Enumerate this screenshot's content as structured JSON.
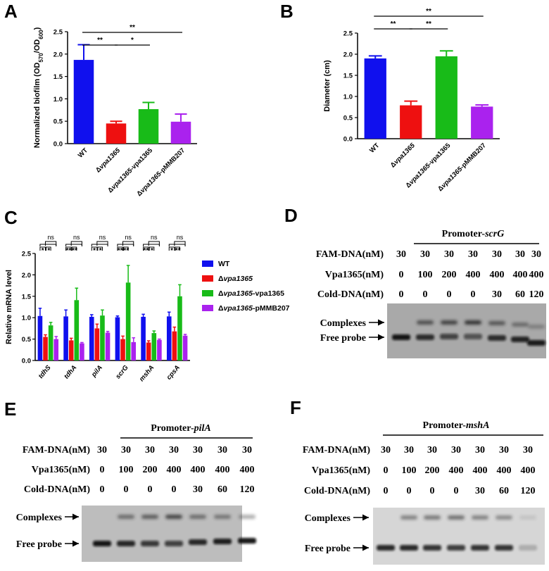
{
  "panels": {
    "A": "A",
    "B": "B",
    "C": "C",
    "D": "D",
    "E": "E",
    "F": "F"
  },
  "colors": {
    "wt": "#1010ee",
    "mutant": "#ee1010",
    "complement": "#18bb18",
    "vector": "#aa22ee"
  },
  "chart_data": [
    {
      "panel": "A",
      "type": "bar",
      "ylabel": "Normalized biofilm (OD570/OD600)",
      "ylim": [
        0,
        2.5
      ],
      "yticks": [
        "0.0",
        "0.5",
        "1.0",
        "1.5",
        "2.0",
        "2.5"
      ],
      "categories": [
        "WT",
        "Δvpa1365",
        "Δvpa1365-vpa1365",
        "Δvpa1365-pMMB207"
      ],
      "values": [
        1.87,
        0.45,
        0.77,
        0.49
      ],
      "errors": [
        0.34,
        0.05,
        0.15,
        0.17
      ],
      "significance": [
        {
          "from": 0,
          "to": 1,
          "label": "**"
        },
        {
          "from": 1,
          "to": 2,
          "label": "*"
        },
        {
          "from": 0,
          "to": 3,
          "label": "**"
        }
      ]
    },
    {
      "panel": "B",
      "type": "bar",
      "ylabel": "Diameter (cm)",
      "ylim": [
        0,
        2.5
      ],
      "yticks": [
        "0.0",
        "0.5",
        "1.0",
        "1.5",
        "2.0",
        "2.5"
      ],
      "categories": [
        "WT",
        "Δvpa1365",
        "Δvpa1365-vpa1365",
        "Δvpa1365-pMMB207"
      ],
      "values": [
        1.9,
        0.79,
        1.95,
        0.76
      ],
      "errors": [
        0.06,
        0.1,
        0.13,
        0.04
      ],
      "significance": [
        {
          "from": 0,
          "to": 1,
          "label": "**"
        },
        {
          "from": 1,
          "to": 2,
          "label": "**"
        },
        {
          "from": 0,
          "to": 3,
          "label": "**"
        }
      ]
    },
    {
      "panel": "C",
      "type": "bar",
      "ylabel": "Relative mRNA level",
      "ylim": [
        0,
        2.5
      ],
      "yticks": [
        "0.0",
        "0.5",
        "1.0",
        "1.5",
        "2.0",
        "2.5"
      ],
      "categories": [
        "tdhS",
        "tdhA",
        "pilA",
        "scrG",
        "mshA",
        "cpsA"
      ],
      "legend": "right",
      "series": [
        {
          "name": "WT",
          "values": [
            1.04,
            1.03,
            1.02,
            1.01,
            1.02,
            1.03
          ],
          "errors": [
            0.18,
            0.15,
            0.05,
            0.03,
            0.06,
            0.1
          ]
        },
        {
          "name": "Δvpa1365",
          "values": [
            0.55,
            0.47,
            0.75,
            0.5,
            0.42,
            0.68
          ],
          "errors": [
            0.05,
            0.05,
            0.1,
            0.07,
            0.04,
            0.1
          ]
        },
        {
          "name": "Δvpa1365-vpa1365",
          "values": [
            0.82,
            1.41,
            1.05,
            1.82,
            0.64,
            1.5
          ],
          "errors": [
            0.07,
            0.28,
            0.13,
            0.4,
            0.05,
            0.27
          ]
        },
        {
          "name": "Δvpa1365-pMMB207",
          "values": [
            0.5,
            0.4,
            0.65,
            0.43,
            0.48,
            0.58
          ],
          "errors": [
            0.06,
            0.02,
            0.03,
            0.1,
            0.02,
            0.03
          ]
        }
      ],
      "significance_rows": [
        {
          "gene": "tdhS",
          "stars": [
            "*",
            "*"
          ],
          "ns": [
            "ns",
            "ns"
          ]
        },
        {
          "gene": "tdhA",
          "stars": [
            "**",
            "**"
          ],
          "ns": [
            "ns",
            "ns"
          ]
        },
        {
          "gene": "pilA",
          "stars": [
            "*",
            "*"
          ],
          "ns": [
            "ns",
            "ns"
          ]
        },
        {
          "gene": "scrG",
          "stars": [
            "**",
            "**"
          ],
          "ns": [
            "ns",
            "ns"
          ]
        },
        {
          "gene": "mshA",
          "stars": [
            "**",
            "*"
          ],
          "ns": [
            "ns",
            "ns"
          ]
        },
        {
          "gene": "cpsA",
          "stars": [
            "*",
            "**"
          ],
          "ns": [
            "ns",
            "ns"
          ]
        }
      ]
    }
  ],
  "gels": [
    {
      "panel": "D",
      "title_prefix": "Promoter-",
      "title_gene": "scrG",
      "rows": [
        {
          "label": "FAM-DNA(nM)",
          "values": [
            "30",
            "30",
            "30",
            "30",
            "30",
            "30",
            "30"
          ]
        },
        {
          "label": "Vpa1365(nM)",
          "values": [
            "0",
            "100",
            "200",
            "400",
            "400",
            "400",
            "400"
          ]
        },
        {
          "label": "Cold-DNA(nM)",
          "values": [
            "0",
            "0",
            "0",
            "0",
            "30",
            "60",
            "120"
          ]
        }
      ],
      "bands": [
        "Complexes",
        "Free probe"
      ]
    },
    {
      "panel": "E",
      "title_prefix": "Promoter-",
      "title_gene": "pilA",
      "rows": [
        {
          "label": "FAM-DNA(nM)",
          "values": [
            "30",
            "30",
            "30",
            "30",
            "30",
            "30",
            "30"
          ]
        },
        {
          "label": "Vpa1365(nM)",
          "values": [
            "0",
            "100",
            "200",
            "400",
            "400",
            "400",
            "400"
          ]
        },
        {
          "label": "Cold-DNA(nM)",
          "values": [
            "0",
            "0",
            "0",
            "0",
            "30",
            "60",
            "120"
          ]
        }
      ],
      "bands": [
        "Complexes",
        "Free probe"
      ]
    },
    {
      "panel": "F",
      "title_prefix": "Promoter-",
      "title_gene": "mshA",
      "rows": [
        {
          "label": "FAM-DNA(nM)",
          "values": [
            "30",
            "30",
            "30",
            "30",
            "30",
            "30",
            "30"
          ]
        },
        {
          "label": "Vpa1365(nM)",
          "values": [
            "0",
            "100",
            "200",
            "400",
            "400",
            "400",
            "400"
          ]
        },
        {
          "label": "Cold-DNA(nM)",
          "values": [
            "0",
            "0",
            "0",
            "0",
            "30",
            "60",
            "120"
          ]
        }
      ],
      "bands": [
        "Complexes",
        "Free probe"
      ]
    }
  ]
}
